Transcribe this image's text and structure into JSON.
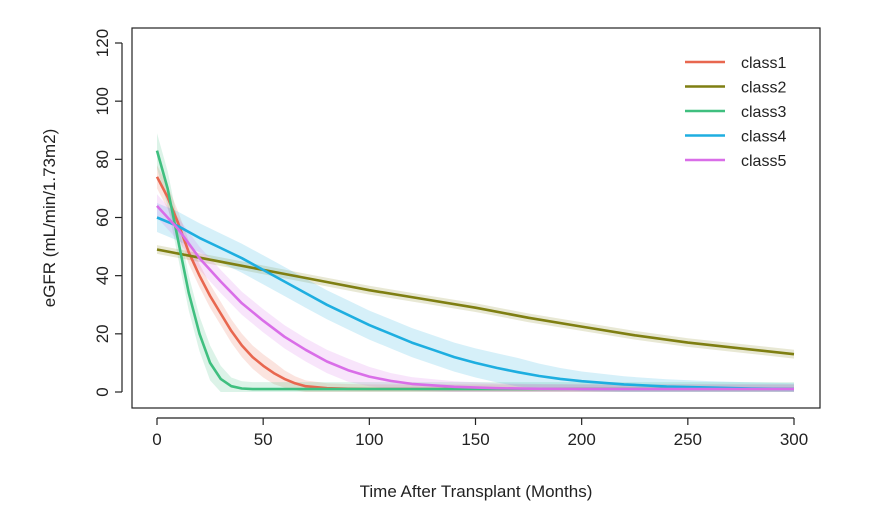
{
  "chart_data": {
    "type": "line",
    "xlabel": "Time After Transplant (Months)",
    "ylabel": "eGFR (mL/min/1.73m2)",
    "xlim": [
      0,
      300
    ],
    "ylim": [
      0,
      120
    ],
    "xticks": [
      "0",
      "50",
      "100",
      "150",
      "200",
      "250",
      "300"
    ],
    "yticks": [
      "0",
      "20",
      "40",
      "60",
      "80",
      "100",
      "120"
    ],
    "grid": false,
    "legend_position": "top-right",
    "series": [
      {
        "name": "class1",
        "color": "#e8674f",
        "x": [
          0,
          5,
          10,
          15,
          20,
          25,
          30,
          35,
          40,
          45,
          50,
          55,
          60,
          65,
          70,
          80,
          90,
          100,
          120,
          150,
          200,
          250,
          300
        ],
        "y": [
          74,
          67,
          58,
          48,
          40,
          33,
          27,
          21,
          16,
          12,
          9,
          6.5,
          4.5,
          3,
          2,
          1.3,
          1.1,
          1,
          1,
          1,
          1,
          1,
          1
        ],
        "band": 4
      },
      {
        "name": "class2",
        "color": "#7f7f12",
        "x": [
          0,
          25,
          50,
          75,
          100,
          125,
          150,
          175,
          200,
          225,
          250,
          275,
          300
        ],
        "y": [
          49,
          45.5,
          42,
          38.5,
          35,
          32,
          29,
          25.5,
          22.5,
          19.5,
          17,
          15,
          13
        ],
        "band": 1.5
      },
      {
        "name": "class3",
        "color": "#3fbf7f",
        "x": [
          0,
          5,
          10,
          15,
          20,
          25,
          30,
          35,
          40,
          45,
          50,
          60,
          80,
          100,
          150,
          200,
          250,
          300
        ],
        "y": [
          83,
          70,
          52,
          34,
          20,
          10,
          4.5,
          2,
          1.2,
          1,
          1,
          1,
          1,
          1,
          1,
          1,
          1,
          1
        ],
        "band": 6
      },
      {
        "name": "class4",
        "color": "#1eaee0",
        "x": [
          0,
          10,
          20,
          30,
          40,
          50,
          60,
          70,
          80,
          90,
          100,
          110,
          120,
          130,
          140,
          150,
          160,
          170,
          180,
          190,
          200,
          220,
          240,
          260,
          280,
          300
        ],
        "y": [
          60,
          57,
          53,
          49.5,
          46,
          42,
          38,
          34,
          30,
          26.5,
          23,
          20,
          17,
          14.5,
          12,
          10,
          8.3,
          6.8,
          5.5,
          4.5,
          3.7,
          2.6,
          1.9,
          1.5,
          1.2,
          1
        ],
        "band": 5
      },
      {
        "name": "class5",
        "color": "#d96ee8",
        "x": [
          0,
          10,
          20,
          30,
          40,
          50,
          60,
          70,
          80,
          90,
          100,
          110,
          120,
          140,
          160,
          180,
          200,
          250,
          300
        ],
        "y": [
          64,
          56,
          46,
          38,
          30.5,
          24.5,
          19,
          14.5,
          10.5,
          7.5,
          5.3,
          3.8,
          2.8,
          1.8,
          1.3,
          1.1,
          1,
          1,
          1
        ],
        "band": 4
      }
    ]
  }
}
